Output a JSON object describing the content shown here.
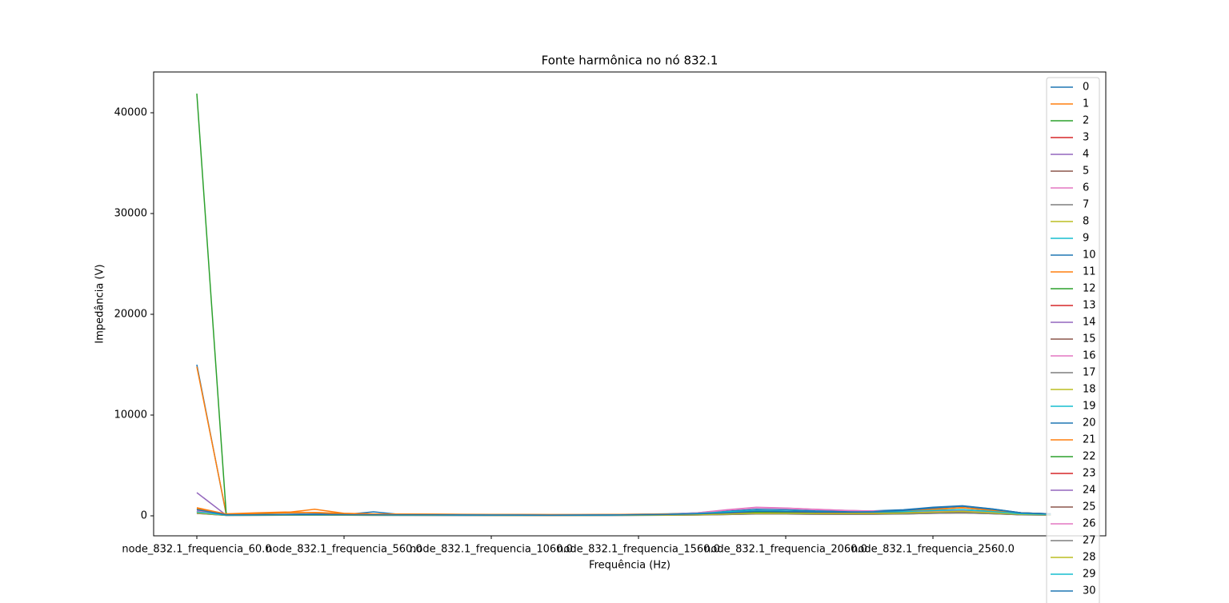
{
  "chart_data": {
    "type": "line",
    "title": "Fonte harmônica no nó 832.1",
    "xlabel": "Frequência (Hz)",
    "ylabel": "Impedância (V)",
    "categories": [
      "node_832.1_frequencia_60.0",
      null,
      null,
      null,
      null,
      "node_832.1_frequencia_560.0",
      null,
      null,
      null,
      null,
      "node_832.1_frequencia_1060.0",
      null,
      null,
      null,
      null,
      "node_832.1_frequencia_1560.0",
      null,
      null,
      null,
      null,
      "node_832.1_frequencia_2060.0",
      null,
      null,
      null,
      null,
      "node_832.1_frequencia_2560.0",
      null,
      null,
      null,
      null
    ],
    "ylim": [
      -1984,
      44048
    ],
    "yticks": [
      0,
      10000,
      20000,
      30000,
      40000
    ],
    "legend": "upper right",
    "series": [
      {
        "name": "0",
        "color": "#1f77b4",
        "values": [
          15000,
          120,
          130,
          150,
          200,
          180,
          160,
          150,
          140,
          130,
          120,
          110,
          100,
          110,
          130,
          160,
          200,
          300,
          450,
          650,
          600,
          500,
          480,
          500,
          600,
          850,
          1000,
          700,
          300,
          200
        ]
      },
      {
        "name": "1",
        "color": "#ff7f0e",
        "values": [
          14800,
          200,
          300,
          380,
          320,
          220,
          180,
          160,
          150,
          140,
          130,
          120,
          110,
          110,
          120,
          140,
          170,
          220,
          300,
          400,
          380,
          350,
          340,
          360,
          450,
          650,
          800,
          550,
          280,
          180
        ]
      },
      {
        "name": "2",
        "color": "#2ca02c",
        "values": [
          41900,
          100,
          120,
          130,
          140,
          130,
          120,
          110,
          100,
          95,
          90,
          85,
          80,
          85,
          95,
          110,
          130,
          170,
          250,
          380,
          350,
          320,
          300,
          320,
          380,
          500,
          600,
          420,
          200,
          150
        ]
      },
      {
        "name": "3",
        "color": "#d62728",
        "values": [
          500,
          80,
          90,
          100,
          110,
          100,
          90,
          85,
          80,
          75,
          70,
          65,
          60,
          65,
          70,
          80,
          95,
          120,
          180,
          250,
          230,
          210,
          200,
          210,
          250,
          330,
          400,
          280,
          140,
          100
        ]
      },
      {
        "name": "4",
        "color": "#9467bd",
        "values": [
          2300,
          60,
          70,
          80,
          90,
          85,
          80,
          75,
          70,
          65,
          60,
          55,
          50,
          55,
          60,
          70,
          85,
          110,
          160,
          220,
          200,
          180,
          170,
          180,
          220,
          290,
          350,
          250,
          120,
          90
        ]
      },
      {
        "name": "5",
        "color": "#8c564b",
        "values": [
          400,
          70,
          80,
          90,
          100,
          95,
          85,
          80,
          75,
          70,
          65,
          60,
          55,
          60,
          65,
          75,
          90,
          130,
          250,
          500,
          450,
          380,
          330,
          300,
          300,
          350,
          400,
          300,
          150,
          100
        ]
      },
      {
        "name": "6",
        "color": "#e377c2",
        "values": [
          600,
          90,
          100,
          110,
          120,
          110,
          100,
          95,
          90,
          85,
          80,
          75,
          70,
          75,
          85,
          100,
          150,
          300,
          600,
          850,
          780,
          650,
          550,
          480,
          450,
          500,
          550,
          400,
          200,
          140
        ]
      },
      {
        "name": "7",
        "color": "#7f7f7f",
        "values": [
          300,
          50,
          55,
          60,
          65,
          60,
          55,
          50,
          48,
          45,
          42,
          40,
          38,
          40,
          45,
          52,
          65,
          90,
          140,
          200,
          190,
          170,
          160,
          170,
          200,
          260,
          300,
          220,
          110,
          80
        ]
      },
      {
        "name": "8",
        "color": "#bcbd22",
        "values": [
          350,
          60,
          70,
          75,
          80,
          75,
          70,
          65,
          60,
          58,
          55,
          50,
          48,
          52,
          58,
          68,
          85,
          120,
          190,
          280,
          260,
          240,
          230,
          240,
          290,
          380,
          450,
          320,
          160,
          110
        ]
      },
      {
        "name": "9",
        "color": "#17becf",
        "values": [
          450,
          80,
          90,
          100,
          110,
          100,
          95,
          90,
          85,
          80,
          75,
          70,
          65,
          70,
          80,
          100,
          140,
          260,
          400,
          520,
          480,
          420,
          390,
          400,
          450,
          550,
          620,
          450,
          220,
          150
        ]
      },
      {
        "name": "10",
        "color": "#1f77b4",
        "values": [
          700,
          100,
          110,
          120,
          130,
          120,
          400,
          110,
          100,
          95,
          90,
          85,
          80,
          85,
          95,
          115,
          145,
          210,
          320,
          480,
          450,
          420,
          410,
          440,
          560,
          800,
          980,
          680,
          300,
          200
        ]
      },
      {
        "name": "11",
        "color": "#ff7f0e",
        "values": [
          800,
          180,
          250,
          320,
          650,
          250,
          190,
          170,
          160,
          150,
          140,
          130,
          120,
          120,
          130,
          150,
          180,
          230,
          310,
          420,
          400,
          370,
          360,
          380,
          460,
          660,
          820,
          560,
          290,
          190
        ]
      },
      {
        "name": "12",
        "color": "#2ca02c",
        "values": [
          500,
          90,
          100,
          110,
          120,
          110,
          100,
          95,
          90,
          85,
          80,
          75,
          70,
          75,
          85,
          100,
          120,
          160,
          230,
          350,
          330,
          300,
          290,
          300,
          360,
          470,
          560,
          400,
          190,
          140
        ]
      },
      {
        "name": "13",
        "color": "#d62728",
        "values": [
          350,
          70,
          80,
          90,
          100,
          95,
          85,
          80,
          75,
          70,
          65,
          60,
          55,
          60,
          65,
          75,
          90,
          115,
          170,
          240,
          220,
          200,
          190,
          200,
          240,
          320,
          390,
          270,
          130,
          95
        ]
      },
      {
        "name": "14",
        "color": "#9467bd",
        "values": [
          400,
          60,
          70,
          80,
          90,
          85,
          80,
          75,
          70,
          65,
          60,
          55,
          50,
          55,
          60,
          70,
          85,
          105,
          150,
          210,
          190,
          170,
          160,
          170,
          210,
          280,
          340,
          240,
          115,
          85
        ]
      },
      {
        "name": "15",
        "color": "#8c564b",
        "values": [
          300,
          65,
          75,
          85,
          95,
          90,
          80,
          75,
          70,
          65,
          60,
          55,
          52,
          56,
          62,
          72,
          88,
          125,
          240,
          480,
          430,
          360,
          320,
          290,
          290,
          340,
          390,
          290,
          140,
          95
        ]
      },
      {
        "name": "16",
        "color": "#e377c2",
        "values": [
          500,
          85,
          95,
          105,
          115,
          105,
          95,
          90,
          85,
          80,
          75,
          70,
          65,
          70,
          80,
          95,
          145,
          290,
          580,
          820,
          760,
          640,
          540,
          470,
          440,
          490,
          540,
          390,
          190,
          130
        ]
      },
      {
        "name": "17",
        "color": "#7f7f7f",
        "values": [
          250,
          45,
          50,
          55,
          60,
          55,
          50,
          46,
          44,
          42,
          40,
          38,
          36,
          38,
          42,
          50,
          62,
          85,
          130,
          190,
          180,
          160,
          150,
          160,
          190,
          250,
          290,
          210,
          105,
          75
        ]
      },
      {
        "name": "18",
        "color": "#bcbd22",
        "values": [
          300,
          55,
          65,
          70,
          75,
          70,
          65,
          60,
          58,
          55,
          52,
          48,
          46,
          50,
          55,
          65,
          80,
          115,
          180,
          270,
          250,
          230,
          220,
          230,
          280,
          370,
          440,
          310,
          150,
          105
        ]
      },
      {
        "name": "19",
        "color": "#17becf",
        "values": [
          400,
          75,
          85,
          95,
          105,
          95,
          90,
          85,
          80,
          75,
          70,
          65,
          62,
          66,
          76,
          95,
          135,
          250,
          390,
          500,
          460,
          400,
          370,
          380,
          430,
          530,
          600,
          430,
          210,
          145
        ]
      },
      {
        "name": "20",
        "color": "#1f77b4",
        "values": [
          650,
          95,
          105,
          115,
          125,
          115,
          105,
          100,
          95,
          90,
          85,
          80,
          76,
          80,
          90,
          110,
          140,
          200,
          310,
          460,
          430,
          400,
          390,
          420,
          540,
          780,
          960,
          660,
          290,
          195
        ]
      },
      {
        "name": "21",
        "color": "#ff7f0e",
        "values": [
          700,
          170,
          240,
          300,
          330,
          240,
          180,
          165,
          155,
          145,
          135,
          125,
          115,
          115,
          125,
          145,
          175,
          225,
          300,
          410,
          390,
          360,
          350,
          370,
          450,
          640,
          800,
          550,
          280,
          185
        ]
      },
      {
        "name": "22",
        "color": "#2ca02c",
        "values": [
          450,
          85,
          95,
          105,
          115,
          105,
          95,
          90,
          85,
          80,
          75,
          70,
          66,
          70,
          80,
          95,
          115,
          155,
          225,
          340,
          320,
          290,
          280,
          290,
          350,
          460,
          550,
          390,
          185,
          135
        ]
      },
      {
        "name": "23",
        "color": "#d62728",
        "values": [
          320,
          65,
          75,
          85,
          95,
          90,
          80,
          75,
          70,
          66,
          62,
          58,
          54,
          58,
          62,
          72,
          88,
          112,
          165,
          235,
          215,
          195,
          185,
          195,
          235,
          310,
          380,
          265,
          125,
          92
        ]
      },
      {
        "name": "24",
        "color": "#9467bd",
        "values": [
          380,
          58,
          68,
          78,
          88,
          82,
          78,
          72,
          68,
          62,
          58,
          53,
          48,
          53,
          58,
          68,
          82,
          102,
          148,
          205,
          185,
          165,
          155,
          165,
          205,
          275,
          335,
          235,
          112,
          82
        ]
      },
      {
        "name": "25",
        "color": "#8c564b",
        "values": [
          280,
          62,
          72,
          82,
          92,
          86,
          78,
          72,
          68,
          62,
          58,
          53,
          50,
          54,
          60,
          70,
          86,
          122,
          235,
          470,
          420,
          350,
          315,
          285,
          285,
          335,
          385,
          285,
          138,
          92
        ]
      },
      {
        "name": "26",
        "color": "#e377c2",
        "values": [
          480,
          82,
          92,
          102,
          112,
          102,
          92,
          88,
          82,
          78,
          72,
          68,
          62,
          68,
          78,
          92,
          142,
          285,
          570,
          810,
          750,
          630,
          530,
          460,
          430,
          480,
          530,
          380,
          185,
          128
        ]
      },
      {
        "name": "27",
        "color": "#7f7f7f",
        "values": [
          240,
          42,
          48,
          52,
          58,
          52,
          48,
          44,
          42,
          40,
          38,
          36,
          34,
          36,
          40,
          48,
          60,
          82,
          126,
          185,
          175,
          155,
          145,
          155,
          185,
          245,
          285,
          205,
          102,
          72
        ]
      },
      {
        "name": "28",
        "color": "#bcbd22",
        "values": [
          290,
          52,
          62,
          68,
          72,
          68,
          62,
          58,
          56,
          52,
          50,
          46,
          44,
          48,
          52,
          62,
          78,
          112,
          175,
          265,
          245,
          225,
          215,
          225,
          275,
          365,
          435,
          305,
          148,
          102
        ]
      },
      {
        "name": "29",
        "color": "#17becf",
        "values": [
          380,
          72,
          82,
          92,
          102,
          92,
          88,
          82,
          78,
          72,
          68,
          62,
          60,
          64,
          74,
          92,
          132,
          245,
          385,
          495,
          455,
          395,
          365,
          375,
          425,
          525,
          595,
          425,
          205,
          142
        ]
      },
      {
        "name": "30",
        "color": "#1f77b4",
        "values": [
          620,
          92,
          102,
          112,
          122,
          112,
          102,
          98,
          92,
          88,
          82,
          78,
          74,
          78,
          88,
          108,
          138,
          198,
          305,
          455,
          425,
          395,
          385,
          415,
          535,
          775,
          955,
          655,
          285,
          192
        ]
      }
    ]
  }
}
